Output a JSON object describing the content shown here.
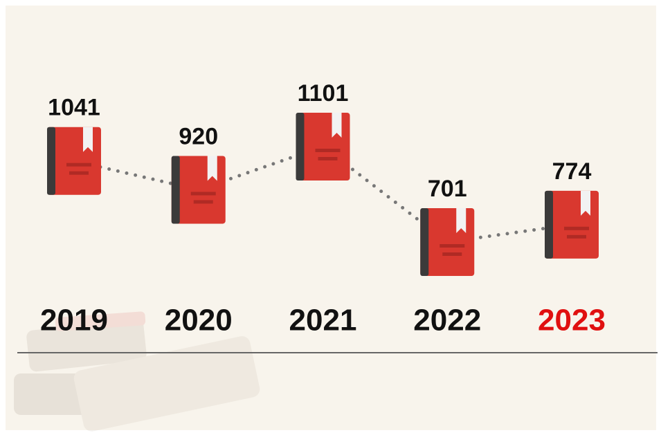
{
  "chart_data": {
    "type": "line",
    "categories": [
      "2019",
      "2020",
      "2021",
      "2022",
      "2023"
    ],
    "values": [
      1041,
      920,
      1101,
      701,
      774
    ],
    "category_colors": [
      "#111111",
      "#111111",
      "#111111",
      "#111111",
      "#e01010"
    ],
    "color": "#d9382f",
    "line_color": "#777777"
  }
}
